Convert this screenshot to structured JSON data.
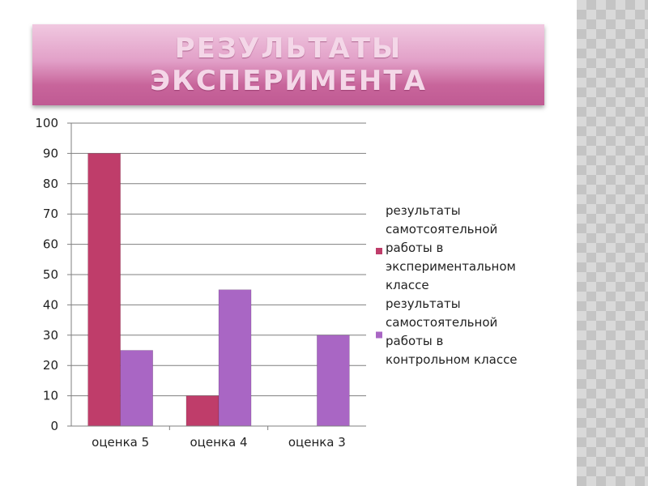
{
  "slide": {
    "title": "РЕЗУЛЬТАТЫ ЭКСПЕРИМЕНТА"
  },
  "colors": {
    "series_1": "#bf3d6a",
    "series_2": "#a966c4",
    "title_text": "#f4d7e8",
    "gridline": "#7f7f7f"
  },
  "chart_data": {
    "type": "bar",
    "categories": [
      "оценка 5",
      "оценка 4",
      "оценка 3"
    ],
    "series": [
      {
        "name": "результаты самотсоятельной работы в экспериментальном классе",
        "legend_lines": [
          "результаты",
          "самотсоятельной",
          "работы в",
          "экспериментальном",
          "классе"
        ],
        "values": [
          90,
          10,
          0
        ]
      },
      {
        "name": "результаты самостоятельной работы в контрольном классе",
        "legend_lines": [
          "результаты",
          "самостоятельной",
          "работы в",
          "контрольном классе"
        ],
        "values": [
          25,
          45,
          30
        ]
      }
    ],
    "ylim": [
      0,
      100
    ],
    "yticks": [
      0,
      10,
      20,
      30,
      40,
      50,
      60,
      70,
      80,
      90,
      100
    ],
    "grid": true,
    "legend_position": "right"
  }
}
